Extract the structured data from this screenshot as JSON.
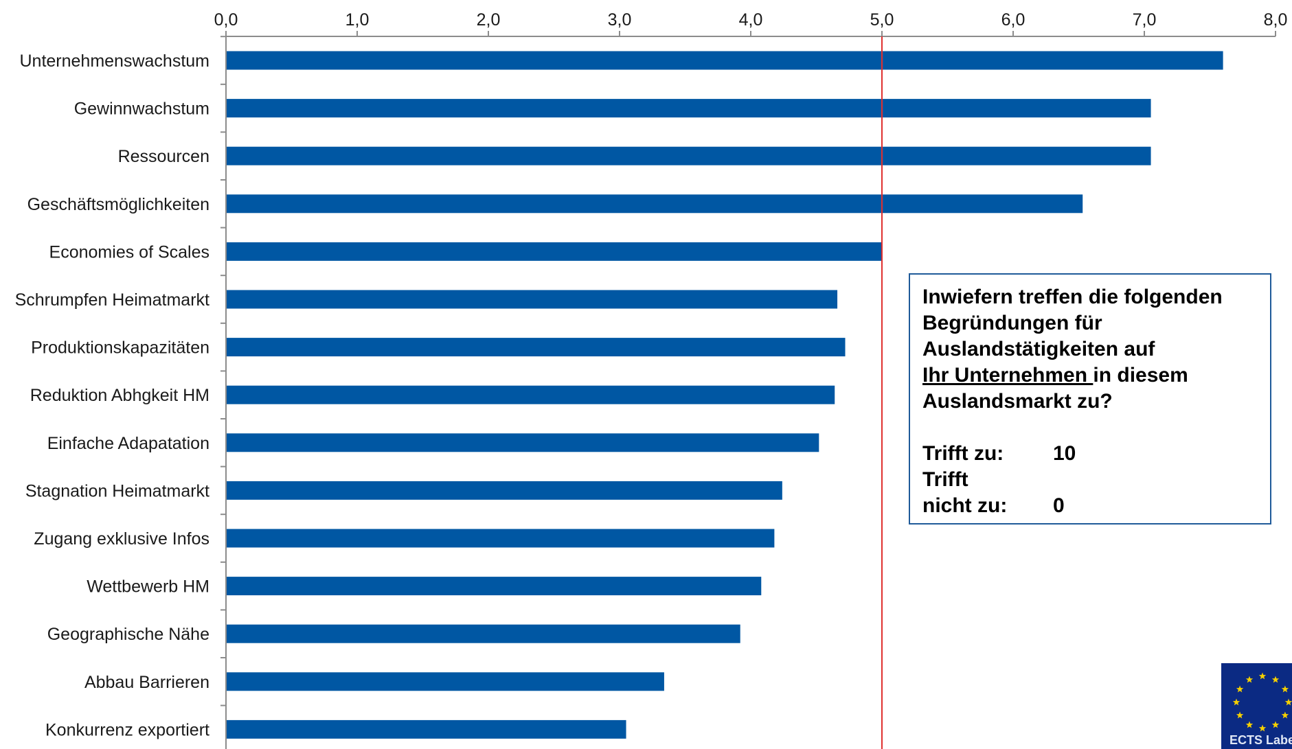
{
  "chart_data": {
    "type": "bar",
    "orientation": "horizontal",
    "categories": [
      "Unternehmenswachstum",
      "Gewinnwachstum",
      "Ressourcen",
      "Geschäftsmöglichkeiten",
      "Economies of Scales",
      "Schrumpfen Heimatmarkt",
      "Produktionskapazitäten",
      "Reduktion Abhgkeit HM",
      "Einfache Adapatation",
      "Stagnation Heimatmarkt",
      "Zugang exklusive Infos",
      "Wettbewerb HM",
      "Geographische Nähe",
      "Abbau Barrieren",
      "Konkurrenz exportiert"
    ],
    "values": [
      7.6,
      7.05,
      7.05,
      6.53,
      5.0,
      4.66,
      4.72,
      4.64,
      4.52,
      4.24,
      4.18,
      4.08,
      3.92,
      3.34,
      3.05
    ],
    "xlim": [
      0,
      8
    ],
    "x_ticks": [
      "0,0",
      "1,0",
      "2,0",
      "3,0",
      "4,0",
      "5,0",
      "6,0",
      "7,0",
      "8,0"
    ],
    "axis_position": "top",
    "reference_line": {
      "value": 5.0,
      "color": "#e0302f"
    },
    "bar_color": "#0057a3",
    "grid": false,
    "legend": "none",
    "title": "",
    "xlabel": "",
    "ylabel": ""
  },
  "info_box": {
    "line1": "Inwiefern treffen die folgenden",
    "line2": "Begründungen für",
    "line3": "Auslandstätigkeiten auf",
    "line4_underlined": "Ihr Unternehmen ",
    "line4_rest": "in diesem",
    "line5": "Auslandsmarkt zu?",
    "scale_high_label": "Trifft zu:",
    "scale_high_value": "10",
    "scale_low_label_1": "Trifft",
    "scale_low_label_2": "nicht zu:",
    "scale_low_value": "0"
  },
  "logo": {
    "text": "ECTS Labe",
    "color": "#0b2a83",
    "star_color": "#f5d000"
  }
}
